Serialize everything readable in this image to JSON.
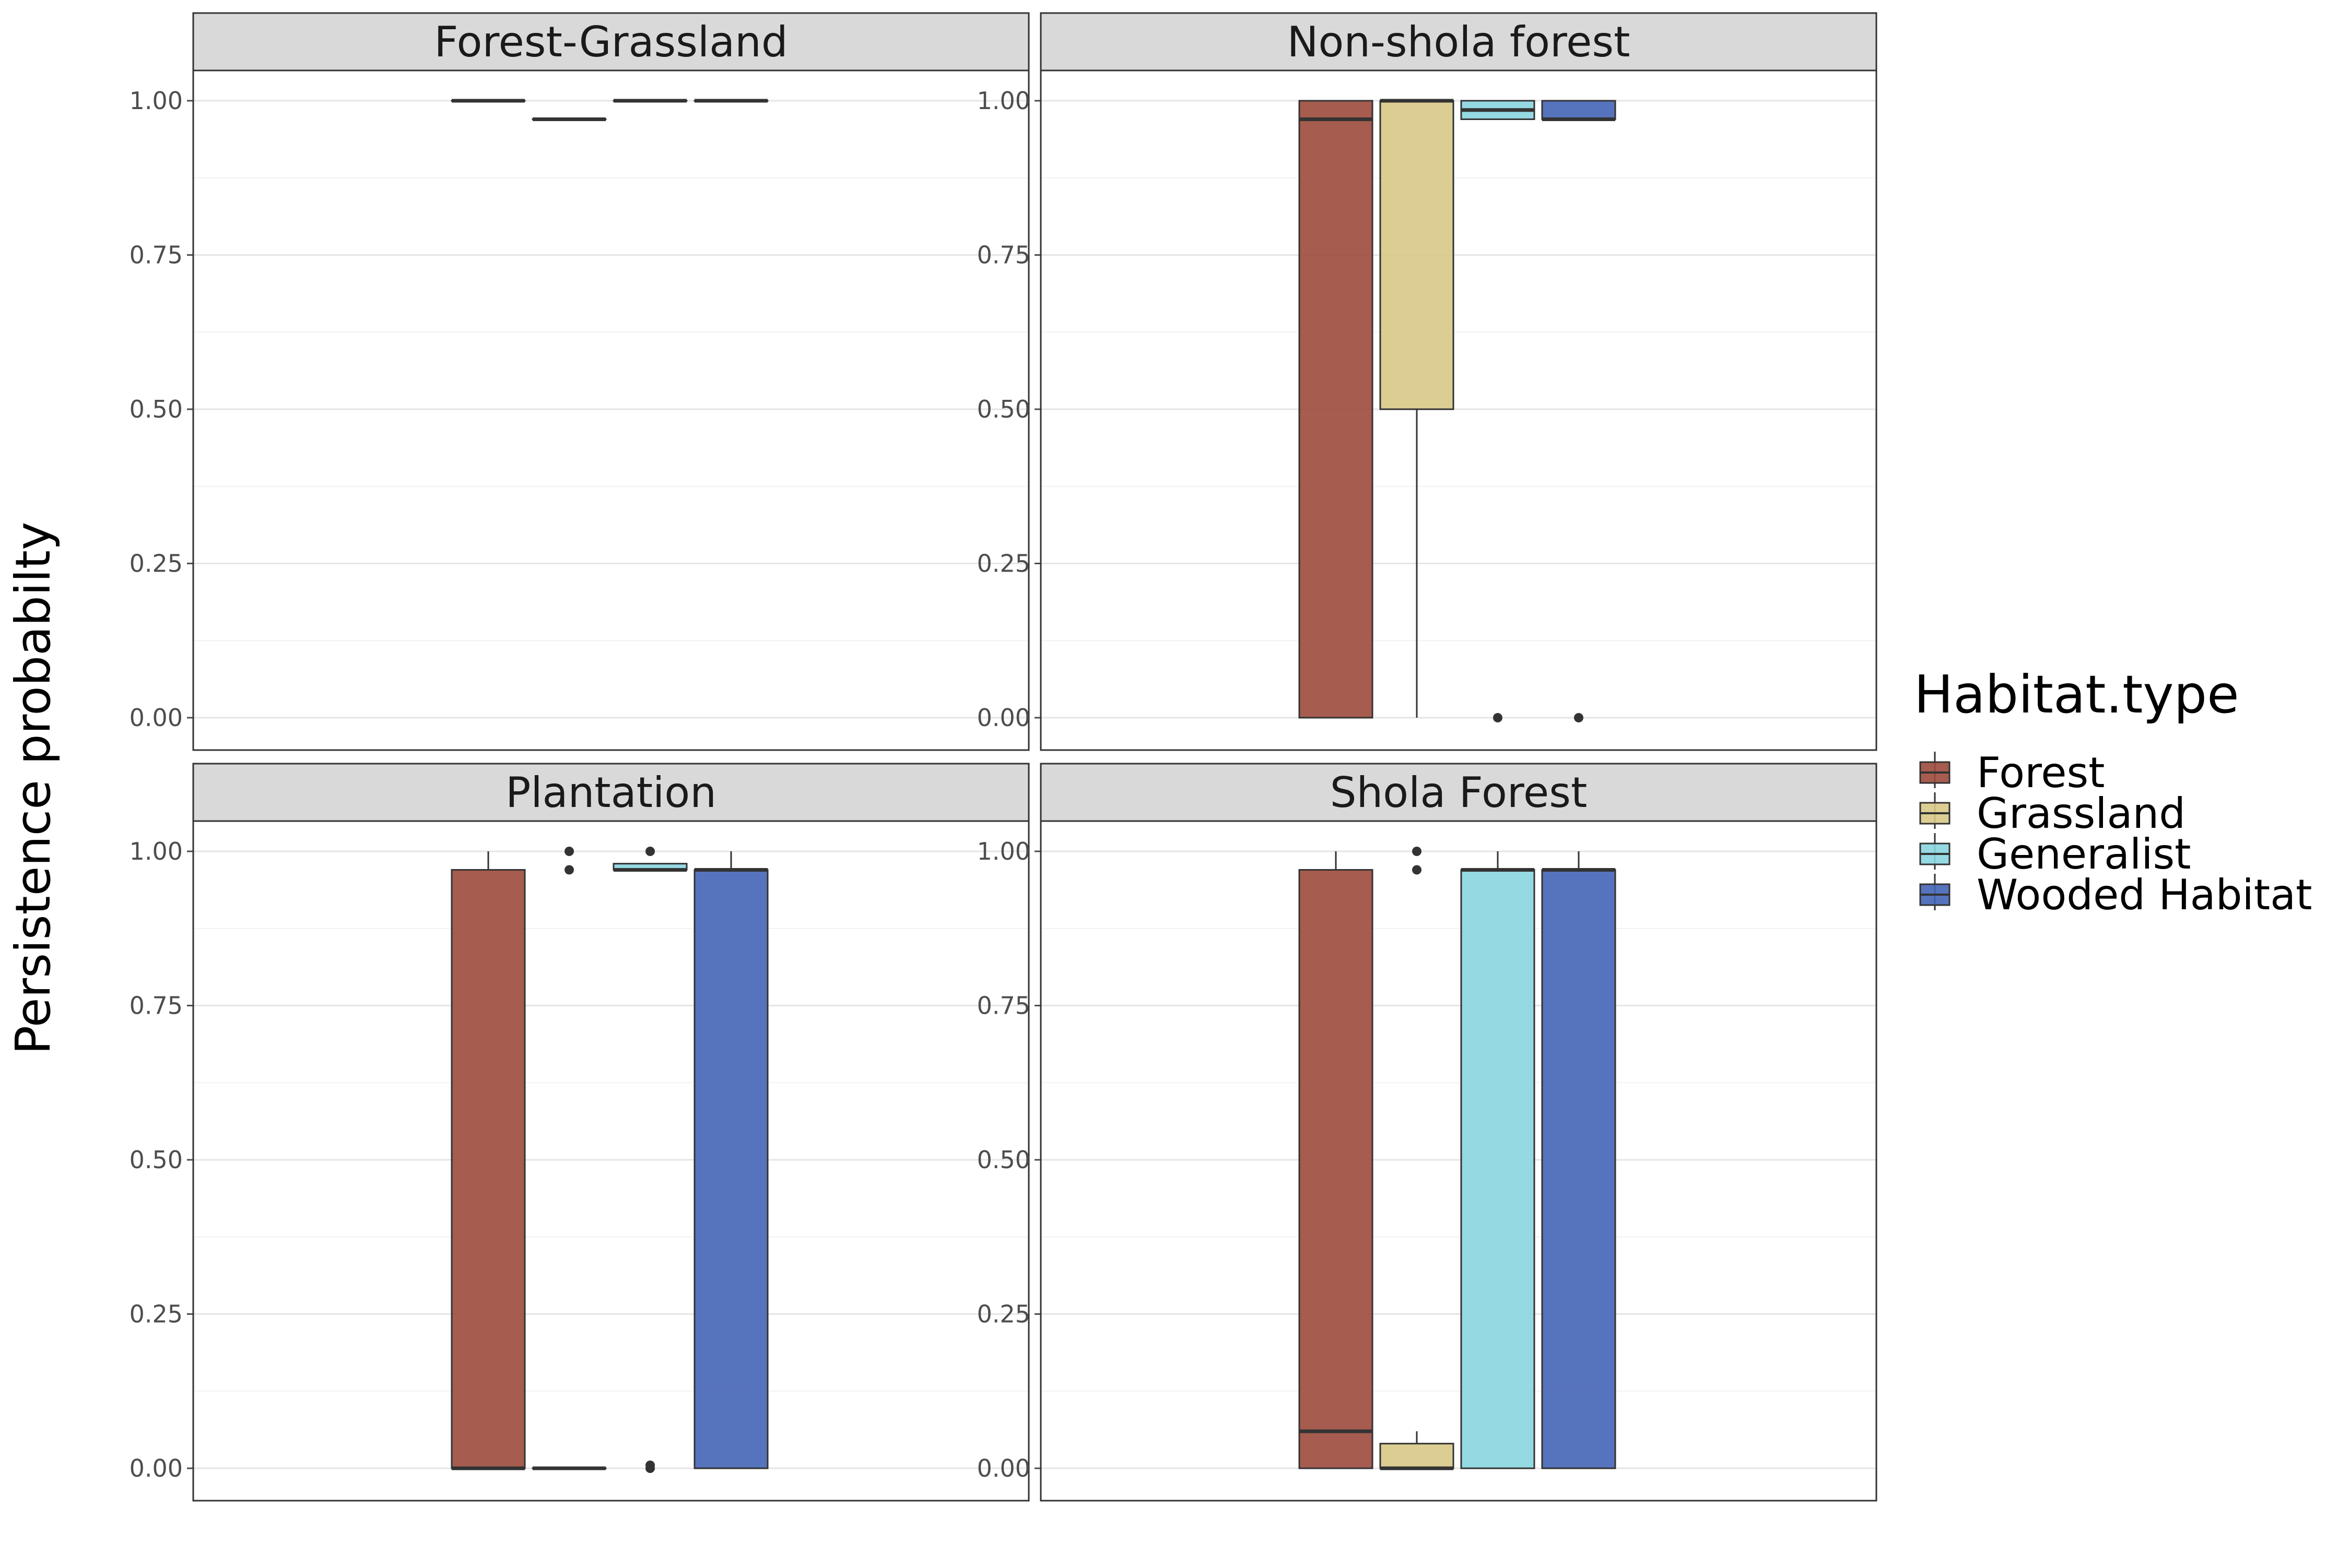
{
  "chart_data": {
    "type": "boxplot",
    "ylabel": "Persistence probabilty",
    "ylim": [
      0,
      1
    ],
    "yticks": [
      0,
      0.25,
      0.5,
      0.75,
      1
    ],
    "ytick_labels": [
      "0.00",
      "0.25",
      "0.50",
      "0.75",
      "1.00"
    ],
    "grid": true,
    "legend": {
      "title": "Habitat.type",
      "position": "right",
      "entries": [
        "Forest",
        "Grassland",
        "Generalist",
        "Wooded Habitat"
      ]
    },
    "colors": {
      "Forest": "#9c4a3c",
      "Grassland": "#d8c987",
      "Generalist": "#89d5e0",
      "Wooded Habitat": "#4464b6"
    },
    "panels": [
      {
        "title": "Forest-Grassland",
        "boxes": [
          {
            "group": "Forest",
            "lower_whisker": 1.0,
            "q1": 1.0,
            "median": 1.0,
            "q3": 1.0,
            "upper_whisker": 1.0,
            "outliers": []
          },
          {
            "group": "Grassland",
            "lower_whisker": 0.97,
            "q1": 0.97,
            "median": 0.97,
            "q3": 0.97,
            "upper_whisker": 0.97,
            "outliers": []
          },
          {
            "group": "Generalist",
            "lower_whisker": 1.0,
            "q1": 1.0,
            "median": 1.0,
            "q3": 1.0,
            "upper_whisker": 1.0,
            "outliers": []
          },
          {
            "group": "Wooded Habitat",
            "lower_whisker": 1.0,
            "q1": 1.0,
            "median": 1.0,
            "q3": 1.0,
            "upper_whisker": 1.0,
            "outliers": []
          }
        ]
      },
      {
        "title": "Non-shola forest",
        "boxes": [
          {
            "group": "Forest",
            "lower_whisker": 0.0,
            "q1": 0.0,
            "median": 0.97,
            "q3": 1.0,
            "upper_whisker": 1.0,
            "outliers": []
          },
          {
            "group": "Grassland",
            "lower_whisker": 0.0,
            "q1": 0.5,
            "median": 1.0,
            "q3": 1.0,
            "upper_whisker": 1.0,
            "outliers": []
          },
          {
            "group": "Generalist",
            "lower_whisker": 0.97,
            "q1": 0.97,
            "median": 0.985,
            "q3": 1.0,
            "upper_whisker": 1.0,
            "outliers": [
              0.0
            ]
          },
          {
            "group": "Wooded Habitat",
            "lower_whisker": 0.97,
            "q1": 0.97,
            "median": 0.97,
            "q3": 1.0,
            "upper_whisker": 1.0,
            "outliers": [
              0.0
            ]
          }
        ]
      },
      {
        "title": "Plantation",
        "boxes": [
          {
            "group": "Forest",
            "lower_whisker": 0.0,
            "q1": 0.0,
            "median": 0.0,
            "q3": 0.97,
            "upper_whisker": 1.0,
            "outliers": []
          },
          {
            "group": "Grassland",
            "lower_whisker": 0.0,
            "q1": 0.0,
            "median": 0.0,
            "q3": 0.0,
            "upper_whisker": 0.0,
            "outliers": [
              1.0,
              0.97
            ]
          },
          {
            "group": "Generalist",
            "lower_whisker": 0.97,
            "q1": 0.97,
            "median": 0.97,
            "q3": 0.98,
            "upper_whisker": 0.98,
            "outliers": [
              1.0,
              0.0,
              0.005
            ]
          },
          {
            "group": "Wooded Habitat",
            "lower_whisker": 0.0,
            "q1": 0.0,
            "median": 0.97,
            "q3": 0.97,
            "upper_whisker": 1.0,
            "outliers": []
          }
        ]
      },
      {
        "title": "Shola Forest",
        "boxes": [
          {
            "group": "Forest",
            "lower_whisker": 0.0,
            "q1": 0.0,
            "median": 0.06,
            "q3": 0.97,
            "upper_whisker": 1.0,
            "outliers": []
          },
          {
            "group": "Grassland",
            "lower_whisker": 0.0,
            "q1": 0.0,
            "median": 0.0,
            "q3": 0.04,
            "upper_whisker": 0.06,
            "outliers": [
              1.0,
              0.97
            ]
          },
          {
            "group": "Generalist",
            "lower_whisker": 0.0,
            "q1": 0.0,
            "median": 0.97,
            "q3": 0.97,
            "upper_whisker": 1.0,
            "outliers": []
          },
          {
            "group": "Wooded Habitat",
            "lower_whisker": 0.0,
            "q1": 0.0,
            "median": 0.97,
            "q3": 0.97,
            "upper_whisker": 1.0,
            "outliers": []
          }
        ]
      }
    ]
  }
}
